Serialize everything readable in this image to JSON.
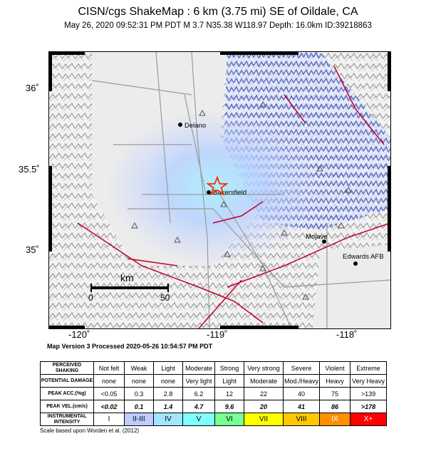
{
  "title": "CISN/cgs ShakeMap : 6 km (3.75 mi) SE of Oildale, CA",
  "subtitle": "May 26, 2020 09:52:31 PM PDT    M 3.7    N35.38 W118.97    Depth: 16.0km    ID:39218863",
  "map": {
    "lat_labels": [
      "36˚",
      "35.5˚",
      "35˚"
    ],
    "lon_labels": [
      "-120˚",
      "-119˚",
      "-118˚"
    ],
    "cities": [
      {
        "name": "Delano"
      },
      {
        "name": "Bakersfield"
      },
      {
        "name": "Mojave"
      },
      {
        "name": "Edwards AFB"
      }
    ],
    "scalebar": {
      "unit": "km",
      "start": "0",
      "end": "50"
    },
    "epicenter_icon": "star-icon",
    "colors": {
      "fault": "#c0002a",
      "road": "#9a9a9a",
      "shake": "#a6c8ff",
      "epicenter": "#ff2a00"
    }
  },
  "footnote": "Map Version 3 Processed 2020-05-26 10:54:57 PM PDT",
  "legend": {
    "rows": [
      {
        "key": "shaking",
        "label": "PERCEIVED SHAKING",
        "values": [
          "Not felt",
          "Weak",
          "Light",
          "Moderate",
          "Strong",
          "Very strong",
          "Severe",
          "Violent",
          "Extreme"
        ]
      },
      {
        "key": "damage",
        "label": "POTENTIAL DAMAGE",
        "values": [
          "none",
          "none",
          "none",
          "Very light",
          "Light",
          "Moderate",
          "Mod./Heavy",
          "Heavy",
          "Very Heavy"
        ]
      },
      {
        "key": "pga",
        "label": "PEAK ACC.(%g)",
        "values": [
          "<0.05",
          "0.3",
          "2.8",
          "6.2",
          "12",
          "22",
          "40",
          "75",
          ">139"
        ]
      },
      {
        "key": "pgv",
        "label": "PEAK VEL.(cm/s)",
        "values": [
          "<0.02",
          "0.1",
          "1.4",
          "4.7",
          "9.6",
          "20",
          "41",
          "86",
          ">178"
        ]
      },
      {
        "key": "intensity",
        "label": "INSTRUMENTAL INTENSITY",
        "values": [
          "I",
          "II-III",
          "IV",
          "V",
          "VI",
          "VII",
          "VIII",
          "IX",
          "X+"
        ]
      }
    ],
    "intensity_colors": [
      "#ffffff",
      "#bfccff",
      "#a0e6ff",
      "#80ffff",
      "#7aff93",
      "#ffff00",
      "#ffc800",
      "#ff9100",
      "#ff0000"
    ]
  },
  "scale_note": "Scale based upon Worden et al. (2012)"
}
